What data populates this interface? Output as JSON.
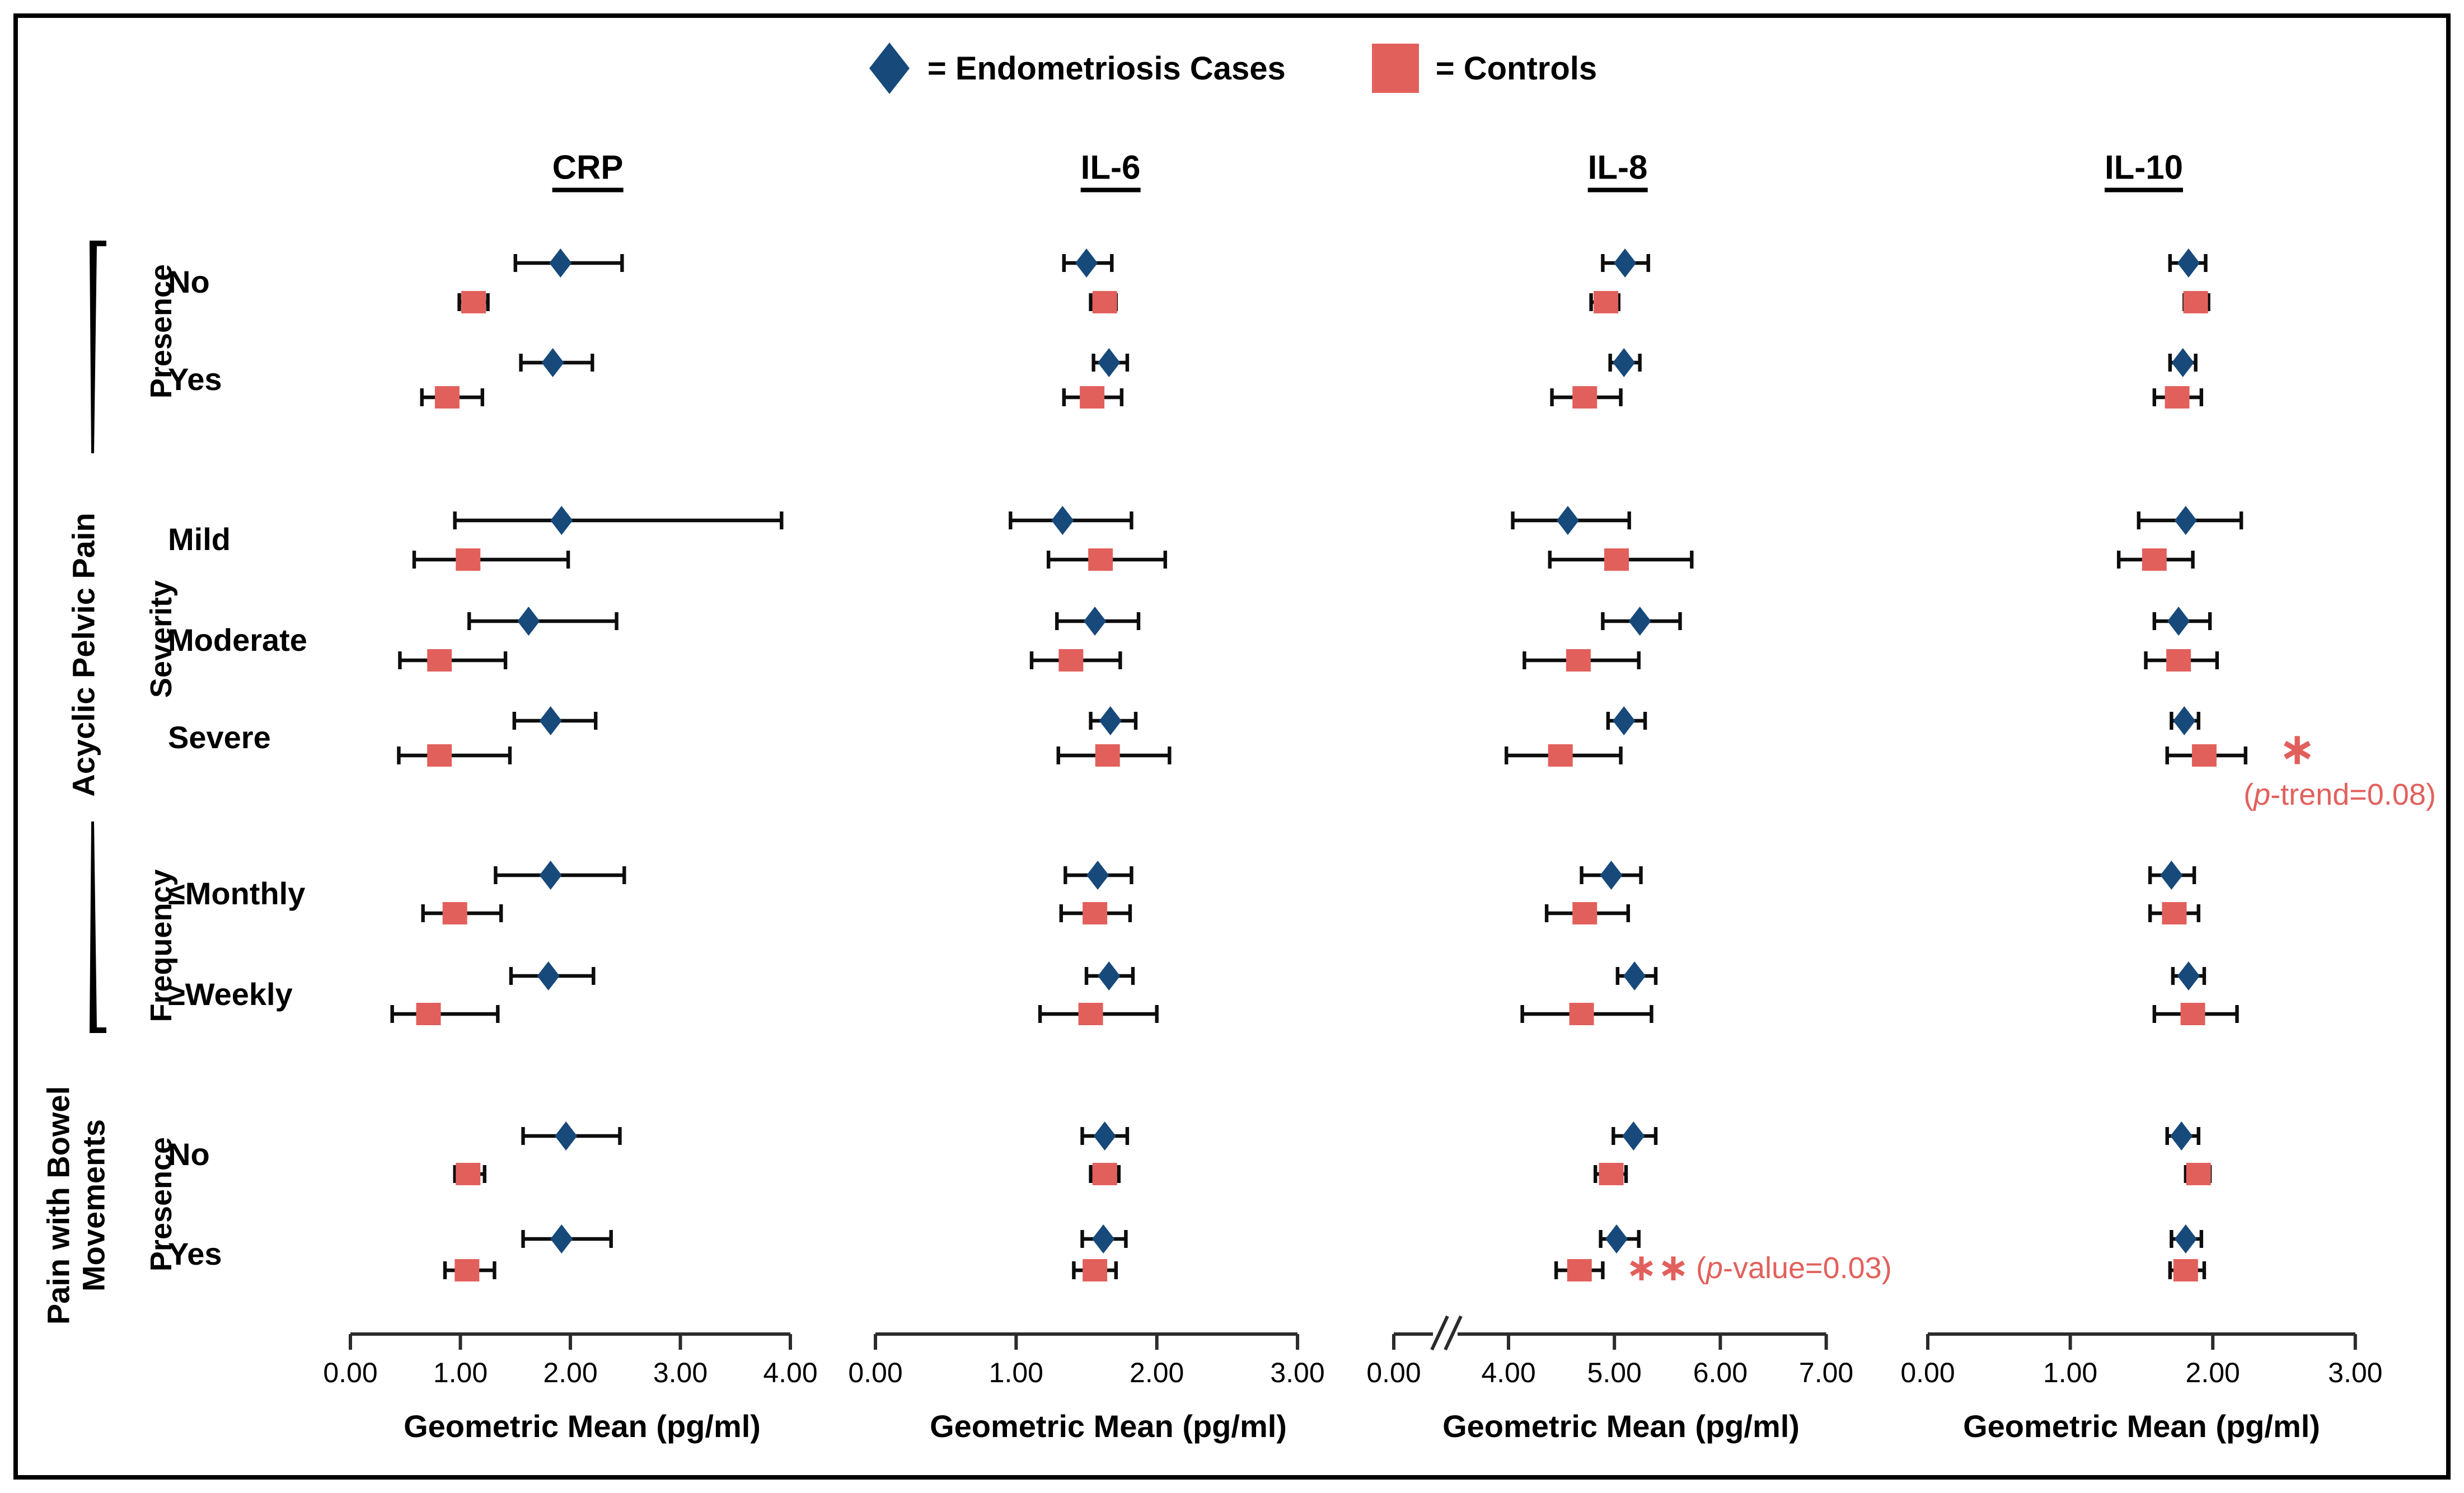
{
  "figure": {
    "legend": {
      "cases_label": "= Endometriosis Cases",
      "controls_label": "= Controls"
    },
    "colors": {
      "cases": "#17497B",
      "controls": "#E2605C",
      "annotation": "#E2605C",
      "axis": "#2B2B2B",
      "error_bar": "#0D0D0D"
    },
    "axis_title": "Geometric Mean (pg/ml)",
    "sidebar": {
      "groups": [
        {
          "label": "Acyclic Pelvic Pain",
          "sections": [
            {
              "label": "Presence",
              "rows": [
                {
                  "id": "presence_no",
                  "label": "No"
                },
                {
                  "id": "presence_yes",
                  "label": "Yes"
                }
              ]
            },
            {
              "label": "Severity",
              "rows": [
                {
                  "id": "mild",
                  "label": "Mild"
                },
                {
                  "id": "moderate",
                  "label": "Moderate"
                },
                {
                  "id": "severe",
                  "label": "Severe"
                }
              ]
            },
            {
              "label": "Frequency",
              "rows": [
                {
                  "id": "monthly",
                  "label": "≤Monthly"
                },
                {
                  "id": "weekly",
                  "label": "≥Weekly"
                }
              ]
            }
          ]
        },
        {
          "label": "Pain with Bowel\nMovements",
          "sections": [
            {
              "label": "Presence",
              "rows": [
                {
                  "id": "bowel_no",
                  "label": "No"
                },
                {
                  "id": "bowel_yes",
                  "label": "Yes"
                }
              ]
            }
          ]
        }
      ]
    }
  },
  "chart_data": [
    {
      "type": "scatter",
      "panel": "CRP",
      "xlabel": "Geometric Mean (pg/ml)",
      "xlim": [
        0,
        4
      ],
      "xticks": [
        {
          "value": 0,
          "label": "0.00"
        },
        {
          "value": 1,
          "label": "1.00"
        },
        {
          "value": 2,
          "label": "2.00"
        },
        {
          "value": 3,
          "label": "3.00"
        },
        {
          "value": 4,
          "label": "4.00"
        }
      ],
      "axis_break": null,
      "series": [
        {
          "name": "Endometriosis Cases",
          "marker": "diamond",
          "color": "#17497B",
          "points": [
            {
              "row": "presence_no",
              "mean": 1.91,
              "lo": 1.5,
              "hi": 2.47
            },
            {
              "row": "presence_yes",
              "mean": 1.84,
              "lo": 1.55,
              "hi": 2.2
            },
            {
              "row": "mild",
              "mean": 1.92,
              "lo": 0.95,
              "hi": 3.92
            },
            {
              "row": "moderate",
              "mean": 1.62,
              "lo": 1.08,
              "hi": 2.42
            },
            {
              "row": "severe",
              "mean": 1.82,
              "lo": 1.49,
              "hi": 2.23
            },
            {
              "row": "monthly",
              "mean": 1.82,
              "lo": 1.32,
              "hi": 2.49
            },
            {
              "row": "weekly",
              "mean": 1.8,
              "lo": 1.46,
              "hi": 2.21
            },
            {
              "row": "bowel_no",
              "mean": 1.96,
              "lo": 1.57,
              "hi": 2.45
            },
            {
              "row": "bowel_yes",
              "mean": 1.92,
              "lo": 1.57,
              "hi": 2.37
            }
          ]
        },
        {
          "name": "Controls",
          "marker": "square",
          "color": "#E2605C",
          "points": [
            {
              "row": "presence_no",
              "mean": 1.12,
              "lo": 0.99,
              "hi": 1.25
            },
            {
              "row": "presence_yes",
              "mean": 0.88,
              "lo": 0.65,
              "hi": 1.2
            },
            {
              "row": "mild",
              "mean": 1.07,
              "lo": 0.58,
              "hi": 1.98
            },
            {
              "row": "moderate",
              "mean": 0.81,
              "lo": 0.45,
              "hi": 1.41
            },
            {
              "row": "severe",
              "mean": 0.81,
              "lo": 0.44,
              "hi": 1.45
            },
            {
              "row": "monthly",
              "mean": 0.95,
              "lo": 0.66,
              "hi": 1.37
            },
            {
              "row": "weekly",
              "mean": 0.71,
              "lo": 0.38,
              "hi": 1.34
            },
            {
              "row": "bowel_no",
              "mean": 1.07,
              "lo": 0.95,
              "hi": 1.22
            },
            {
              "row": "bowel_yes",
              "mean": 1.06,
              "lo": 0.86,
              "hi": 1.31
            }
          ]
        }
      ],
      "annotations": []
    },
    {
      "type": "scatter",
      "panel": "IL-6",
      "xlabel": "Geometric Mean (pg/ml)",
      "xlim": [
        0,
        3
      ],
      "xticks": [
        {
          "value": 0,
          "label": "0.00"
        },
        {
          "value": 1,
          "label": "1.00"
        },
        {
          "value": 2,
          "label": "2.00"
        },
        {
          "value": 3,
          "label": "3.00"
        }
      ],
      "axis_break": null,
      "series": [
        {
          "name": "Endometriosis Cases",
          "marker": "diamond",
          "color": "#17497B",
          "points": [
            {
              "row": "presence_no",
              "mean": 1.5,
              "lo": 1.34,
              "hi": 1.68
            },
            {
              "row": "presence_yes",
              "mean": 1.66,
              "lo": 1.55,
              "hi": 1.79
            },
            {
              "row": "mild",
              "mean": 1.33,
              "lo": 0.96,
              "hi": 1.82
            },
            {
              "row": "moderate",
              "mean": 1.56,
              "lo": 1.29,
              "hi": 1.87
            },
            {
              "row": "severe",
              "mean": 1.67,
              "lo": 1.53,
              "hi": 1.85
            },
            {
              "row": "monthly",
              "mean": 1.58,
              "lo": 1.35,
              "hi": 1.82
            },
            {
              "row": "weekly",
              "mean": 1.66,
              "lo": 1.5,
              "hi": 1.83
            },
            {
              "row": "bowel_no",
              "mean": 1.63,
              "lo": 1.47,
              "hi": 1.79
            },
            {
              "row": "bowel_yes",
              "mean": 1.62,
              "lo": 1.47,
              "hi": 1.78
            }
          ]
        },
        {
          "name": "Controls",
          "marker": "square",
          "color": "#E2605C",
          "points": [
            {
              "row": "presence_no",
              "mean": 1.63,
              "lo": 1.53,
              "hi": 1.71
            },
            {
              "row": "presence_yes",
              "mean": 1.54,
              "lo": 1.34,
              "hi": 1.75
            },
            {
              "row": "mild",
              "mean": 1.6,
              "lo": 1.23,
              "hi": 2.06
            },
            {
              "row": "moderate",
              "mean": 1.39,
              "lo": 1.11,
              "hi": 1.74
            },
            {
              "row": "severe",
              "mean": 1.65,
              "lo": 1.3,
              "hi": 2.09
            },
            {
              "row": "monthly",
              "mean": 1.56,
              "lo": 1.32,
              "hi": 1.81
            },
            {
              "row": "weekly",
              "mean": 1.53,
              "lo": 1.17,
              "hi": 2.0
            },
            {
              "row": "bowel_no",
              "mean": 1.63,
              "lo": 1.53,
              "hi": 1.73
            },
            {
              "row": "bowel_yes",
              "mean": 1.56,
              "lo": 1.41,
              "hi": 1.71
            }
          ]
        }
      ],
      "annotations": []
    },
    {
      "type": "scatter",
      "panel": "IL-8",
      "xlabel": "Geometric Mean (pg/ml)",
      "xlim": [
        0,
        7
      ],
      "xticks": [
        {
          "value": 0,
          "label": "0.00"
        },
        {
          "value": 4,
          "label": "4.00"
        },
        {
          "value": 5,
          "label": "5.00"
        },
        {
          "value": 6,
          "label": "6.00"
        },
        {
          "value": 7,
          "label": "7.00"
        }
      ],
      "axis_break": {
        "after_value": 0,
        "before_value": 4
      },
      "series": [
        {
          "name": "Endometriosis Cases",
          "marker": "diamond",
          "color": "#17497B",
          "points": [
            {
              "row": "presence_no",
              "mean": 5.1,
              "lo": 4.89,
              "hi": 5.32
            },
            {
              "row": "presence_yes",
              "mean": 5.09,
              "lo": 4.96,
              "hi": 5.24
            },
            {
              "row": "mild",
              "mean": 4.56,
              "lo": 4.04,
              "hi": 5.14
            },
            {
              "row": "moderate",
              "mean": 5.24,
              "lo": 4.89,
              "hi": 5.62
            },
            {
              "row": "severe",
              "mean": 5.09,
              "lo": 4.94,
              "hi": 5.29
            },
            {
              "row": "monthly",
              "mean": 4.97,
              "lo": 4.69,
              "hi": 5.25
            },
            {
              "row": "weekly",
              "mean": 5.19,
              "lo": 5.03,
              "hi": 5.39
            },
            {
              "row": "bowel_no",
              "mean": 5.18,
              "lo": 4.99,
              "hi": 5.39
            },
            {
              "row": "bowel_yes",
              "mean": 5.02,
              "lo": 4.87,
              "hi": 5.23
            }
          ]
        },
        {
          "name": "Controls",
          "marker": "square",
          "color": "#E2605C",
          "points": [
            {
              "row": "presence_no",
              "mean": 4.92,
              "lo": 4.78,
              "hi": 5.04
            },
            {
              "row": "presence_yes",
              "mean": 4.72,
              "lo": 4.41,
              "hi": 5.06
            },
            {
              "row": "mild",
              "mean": 5.02,
              "lo": 4.39,
              "hi": 5.73
            },
            {
              "row": "moderate",
              "mean": 4.66,
              "lo": 4.15,
              "hi": 5.23
            },
            {
              "row": "severe",
              "mean": 4.49,
              "lo": 3.98,
              "hi": 5.06
            },
            {
              "row": "monthly",
              "mean": 4.72,
              "lo": 4.36,
              "hi": 5.13
            },
            {
              "row": "weekly",
              "mean": 4.69,
              "lo": 4.13,
              "hi": 5.35
            },
            {
              "row": "bowel_no",
              "mean": 4.97,
              "lo": 4.82,
              "hi": 5.11
            },
            {
              "row": "bowel_yes",
              "mean": 4.67,
              "lo": 4.45,
              "hi": 4.89
            }
          ]
        }
      ],
      "annotations": [
        {
          "row": "bowel_yes",
          "series": "controls",
          "stars": "∗∗",
          "label_pre": "(",
          "label_p": "p",
          "label_post": "-value=0.03)"
        }
      ]
    },
    {
      "type": "scatter",
      "panel": "IL-10",
      "xlabel": "Geometric Mean (pg/ml)",
      "xlim": [
        0,
        3
      ],
      "xticks": [
        {
          "value": 0,
          "label": "0.00"
        },
        {
          "value": 1,
          "label": "1.00"
        },
        {
          "value": 2,
          "label": "2.00"
        },
        {
          "value": 3,
          "label": "3.00"
        }
      ],
      "axis_break": null,
      "series": [
        {
          "name": "Endometriosis Cases",
          "marker": "diamond",
          "color": "#17497B",
          "points": [
            {
              "row": "presence_no",
              "mean": 1.83,
              "lo": 1.7,
              "hi": 1.95
            },
            {
              "row": "presence_yes",
              "mean": 1.79,
              "lo": 1.7,
              "hi": 1.88
            },
            {
              "row": "mild",
              "mean": 1.81,
              "lo": 1.48,
              "hi": 2.2
            },
            {
              "row": "moderate",
              "mean": 1.76,
              "lo": 1.59,
              "hi": 1.98
            },
            {
              "row": "severe",
              "mean": 1.8,
              "lo": 1.71,
              "hi": 1.9
            },
            {
              "row": "monthly",
              "mean": 1.71,
              "lo": 1.56,
              "hi": 1.87
            },
            {
              "row": "weekly",
              "mean": 1.83,
              "lo": 1.72,
              "hi": 1.94
            },
            {
              "row": "bowel_no",
              "mean": 1.78,
              "lo": 1.68,
              "hi": 1.9
            },
            {
              "row": "bowel_yes",
              "mean": 1.81,
              "lo": 1.71,
              "hi": 1.92
            }
          ]
        },
        {
          "name": "Controls",
          "marker": "square",
          "color": "#E2605C",
          "points": [
            {
              "row": "presence_no",
              "mean": 1.88,
              "lo": 1.8,
              "hi": 1.97
            },
            {
              "row": "presence_yes",
              "mean": 1.75,
              "lo": 1.59,
              "hi": 1.92
            },
            {
              "row": "mild",
              "mean": 1.59,
              "lo": 1.34,
              "hi": 1.86
            },
            {
              "row": "moderate",
              "mean": 1.76,
              "lo": 1.53,
              "hi": 2.03
            },
            {
              "row": "severe",
              "mean": 1.94,
              "lo": 1.68,
              "hi": 2.23
            },
            {
              "row": "monthly",
              "mean": 1.73,
              "lo": 1.56,
              "hi": 1.9
            },
            {
              "row": "weekly",
              "mean": 1.86,
              "lo": 1.59,
              "hi": 2.17
            },
            {
              "row": "bowel_no",
              "mean": 1.9,
              "lo": 1.81,
              "hi": 1.98
            },
            {
              "row": "bowel_yes",
              "mean": 1.81,
              "lo": 1.7,
              "hi": 1.94
            }
          ]
        }
      ],
      "annotations": [
        {
          "row": "severe",
          "series": "controls",
          "stars": "∗",
          "label_pre": "(",
          "label_p": "p",
          "label_post": "-trend=0.08)"
        }
      ]
    }
  ]
}
